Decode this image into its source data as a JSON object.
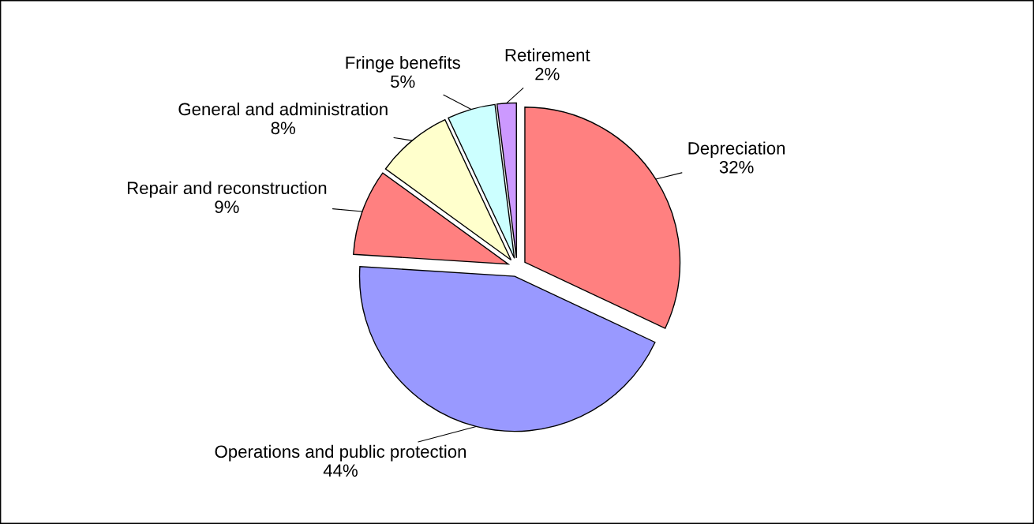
{
  "chart_data": {
    "type": "pie",
    "categories": [
      "Depreciation",
      "Operations and public protection",
      "Repair and reconstruction",
      "General and administration",
      "Fringe benefits",
      "Retirement"
    ],
    "values": [
      32,
      44,
      9,
      8,
      5,
      2
    ],
    "value_labels": [
      "32%",
      "44%",
      "9%",
      "8%",
      "5%",
      "2%"
    ],
    "colors": [
      "#ff8080",
      "#9999ff",
      "#ff8080",
      "#ffffcc",
      "#ccffff",
      "#cc99ff"
    ],
    "legend": false
  }
}
